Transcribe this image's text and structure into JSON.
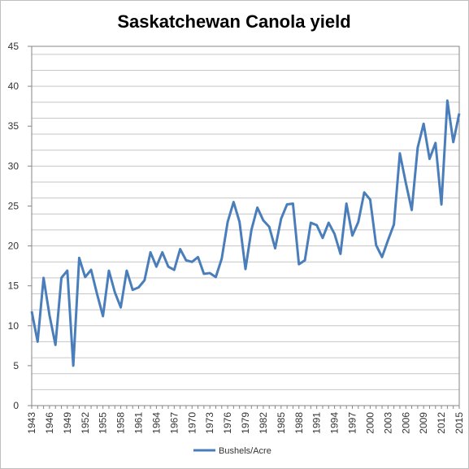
{
  "chart_data": {
    "type": "line",
    "title": "Saskatchewan Canola yield",
    "xlabel": "",
    "ylabel": "",
    "ylim": [
      0,
      45
    ],
    "yticks": [
      "0",
      "5",
      "10",
      "15",
      "20",
      "25",
      "30",
      "35",
      "40",
      "45"
    ],
    "xticks": [
      "1943",
      "1946",
      "1949",
      "1952",
      "1955",
      "1958",
      "1961",
      "1964",
      "1967",
      "1970",
      "1973",
      "1976",
      "1979",
      "1982",
      "1985",
      "1988",
      "1991",
      "1994",
      "1997",
      "2000",
      "2003",
      "2006",
      "2009",
      "2012",
      "2015"
    ],
    "grid": true,
    "legend_position": "bottom",
    "line_color": "#4a7ebb",
    "x": [
      1943,
      1944,
      1945,
      1946,
      1947,
      1948,
      1949,
      1950,
      1951,
      1952,
      1953,
      1954,
      1955,
      1956,
      1957,
      1958,
      1959,
      1960,
      1961,
      1962,
      1963,
      1964,
      1965,
      1966,
      1967,
      1968,
      1969,
      1970,
      1971,
      1972,
      1973,
      1974,
      1975,
      1976,
      1977,
      1978,
      1979,
      1980,
      1981,
      1982,
      1983,
      1984,
      1985,
      1986,
      1987,
      1988,
      1989,
      1990,
      1991,
      1992,
      1993,
      1994,
      1995,
      1996,
      1997,
      1998,
      1999,
      2000,
      2001,
      2002,
      2003,
      2004,
      2005,
      2006,
      2007,
      2008,
      2009,
      2010,
      2011,
      2012,
      2013,
      2014,
      2015
    ],
    "series": [
      {
        "name": "Bushels/Acre",
        "values": [
          11.8,
          8.0,
          16.0,
          11.3,
          7.6,
          16.0,
          16.9,
          5.0,
          18.5,
          16.1,
          17.0,
          14.0,
          11.2,
          16.9,
          14.2,
          12.3,
          16.9,
          14.5,
          14.8,
          15.7,
          19.2,
          17.4,
          19.2,
          17.4,
          17.0,
          19.6,
          18.2,
          18.0,
          18.6,
          16.5,
          16.6,
          16.1,
          18.4,
          23.0,
          25.5,
          23.0,
          17.1,
          22.0,
          24.8,
          23.2,
          22.4,
          19.7,
          23.4,
          25.2,
          25.3,
          17.7,
          18.2,
          22.9,
          22.6,
          21.0,
          22.9,
          21.5,
          19.0,
          25.3,
          21.3,
          23.0,
          26.7,
          25.8,
          20.1,
          18.6,
          20.7,
          22.7,
          31.6,
          27.9,
          24.5,
          32.3,
          35.3,
          30.9,
          32.9,
          25.2,
          38.2,
          33.0,
          36.6
        ]
      }
    ]
  }
}
